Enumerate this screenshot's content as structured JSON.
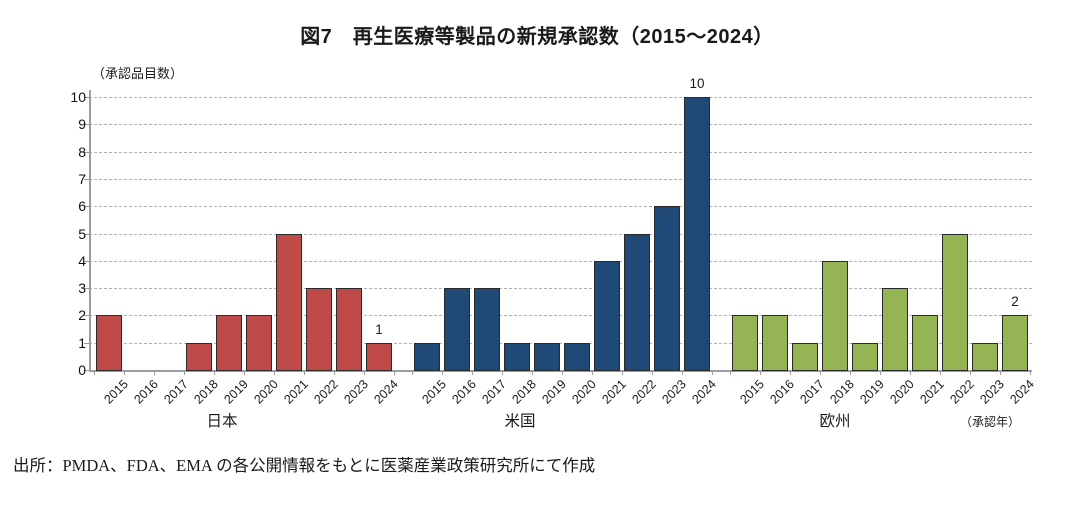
{
  "figure": {
    "title": "図7　再生医療等製品の新規承認数（2015～2024）",
    "y_axis_unit_label": "（承認品目数）",
    "x_axis_unit_label": "（承認年）",
    "source_note": "出所：PMDA、FDA、EMA の各公開情報をもとに医薬産業政策研究所にて作成"
  },
  "chart_data": {
    "type": "bar",
    "title": "図7　再生医療等製品の新規承認数（2015～2024）",
    "ylabel": "（承認品目数）",
    "xlabel": "（承認年）",
    "ylim": [
      0,
      10
    ],
    "yticks": [
      0,
      1,
      2,
      3,
      4,
      5,
      6,
      7,
      8,
      9,
      10
    ],
    "grid": "horizontal-dashed",
    "legend": "none",
    "categories": [
      "2015",
      "2016",
      "2017",
      "2018",
      "2019",
      "2020",
      "2021",
      "2022",
      "2023",
      "2024"
    ],
    "series": [
      {
        "name": "日本",
        "color": "#BE4B48",
        "values": [
          2,
          0,
          0,
          1,
          2,
          2,
          5,
          3,
          3,
          1
        ]
      },
      {
        "name": "米国",
        "color": "#1F4A77",
        "values": [
          1,
          3,
          3,
          1,
          1,
          1,
          4,
          5,
          6,
          10
        ]
      },
      {
        "name": "欧州",
        "color": "#95B554",
        "values": [
          2,
          2,
          1,
          4,
          1,
          3,
          2,
          5,
          1,
          2
        ]
      }
    ],
    "bar_border_color": "#2A2A2A",
    "annotations": [
      {
        "series": "日本",
        "category": "2024",
        "text": "1"
      },
      {
        "series": "米国",
        "category": "2024",
        "text": "10"
      },
      {
        "series": "欧州",
        "category": "2024",
        "text": "2"
      }
    ]
  }
}
